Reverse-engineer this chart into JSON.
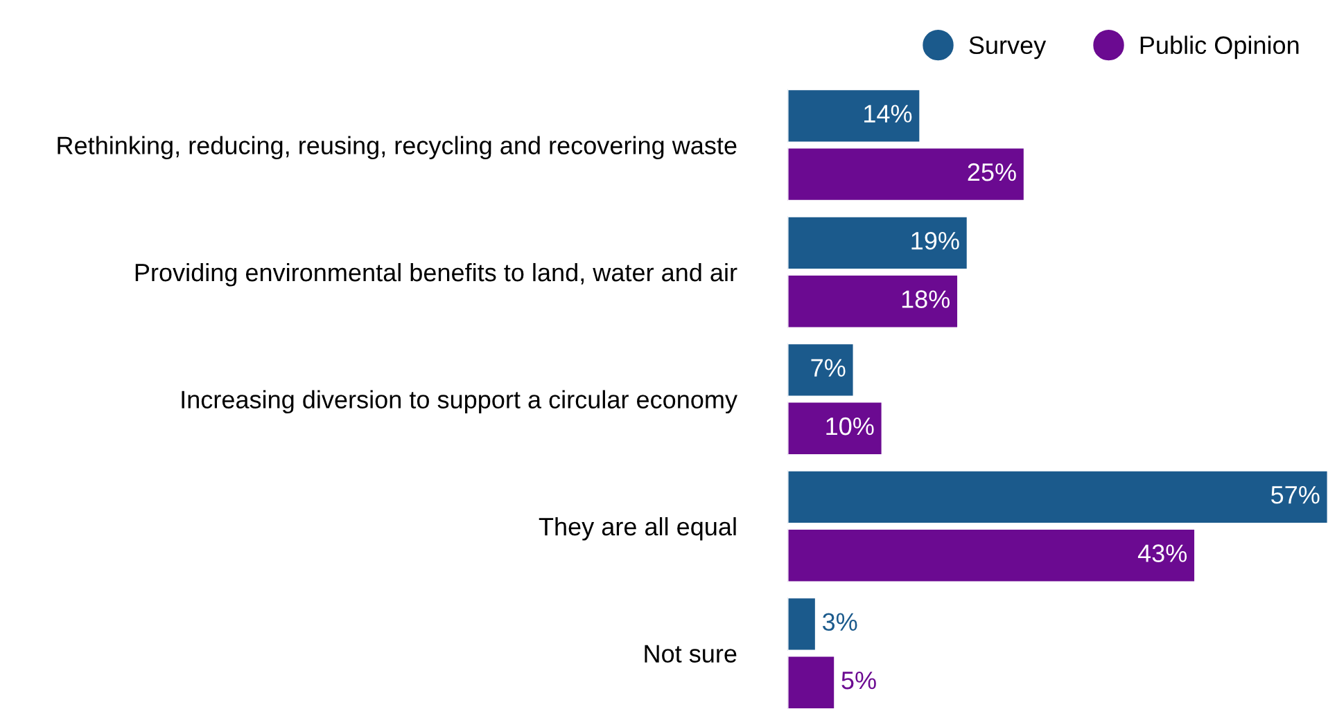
{
  "chart_data": {
    "type": "bar",
    "orientation": "horizontal",
    "categories": [
      "Rethinking, reducing, reusing, recycling and recovering waste",
      "Providing environmental benefits to land, water and air",
      "Increasing diversion to support a circular economy",
      "They are all equal",
      "Not sure"
    ],
    "series": [
      {
        "name": "Survey",
        "color": "#1b5a8c",
        "values": [
          14,
          19,
          7,
          57,
          3
        ],
        "value_labels": [
          "14%",
          "19%",
          "7%",
          "57%",
          "3%"
        ]
      },
      {
        "name": "Public Opinion",
        "color": "#6b0a91",
        "values": [
          25,
          18,
          10,
          43,
          5
        ],
        "value_labels": [
          "25%",
          "18%",
          "10%",
          "43%",
          "5%"
        ]
      }
    ],
    "legend": "top right",
    "grid": false,
    "tick_labels": "y"
  }
}
